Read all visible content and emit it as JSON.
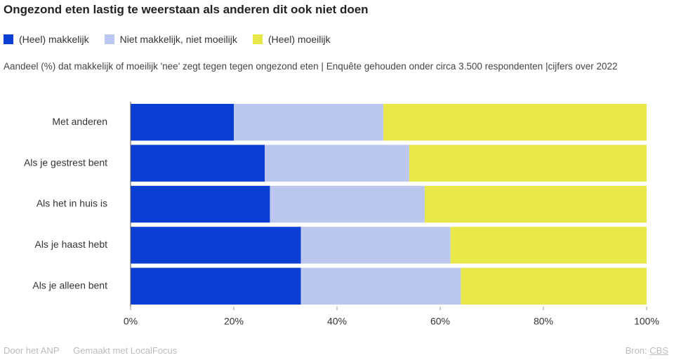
{
  "chart_data": {
    "type": "stacked-barh",
    "title": "Ongezond eten lastig te weerstaan als anderen dit ook niet doen",
    "subtitle": "Aandeel (%) dat makkelijk of moeilijk 'nee' zegt tegen tegen ongezond eten | Enquête gehouden onder circa 3.500 respondenten |cijfers over 2022",
    "categories": [
      "Met anderen",
      "Als je gestrest bent",
      "Als het in huis is",
      "Als je haast hebt",
      "Als je alleen bent"
    ],
    "series": [
      {
        "name": "(Heel) makkelijk",
        "color": "#0b3fd3",
        "values": [
          20,
          26,
          27,
          33,
          33
        ]
      },
      {
        "name": "Niet makkelijk, niet moeilijk",
        "color": "#bcc7f0",
        "values": [
          29,
          28,
          30,
          29,
          31
        ]
      },
      {
        "name": "(Heel) moeilijk",
        "color": "#e9e84b",
        "values": [
          51,
          46,
          43,
          38,
          36
        ]
      }
    ],
    "xlim": [
      0,
      100
    ],
    "xticks": [
      {
        "value": 0,
        "label": "0%"
      },
      {
        "value": 20,
        "label": "20%"
      },
      {
        "value": 40,
        "label": "40%"
      },
      {
        "value": 60,
        "label": "60%"
      },
      {
        "value": 80,
        "label": "80%"
      },
      {
        "value": 100,
        "label": "100%"
      }
    ],
    "footer": {
      "author": "Door het ANP",
      "tool": "Gemaakt met LocalFocus",
      "source_label": "Bron:",
      "source": "CBS"
    }
  }
}
